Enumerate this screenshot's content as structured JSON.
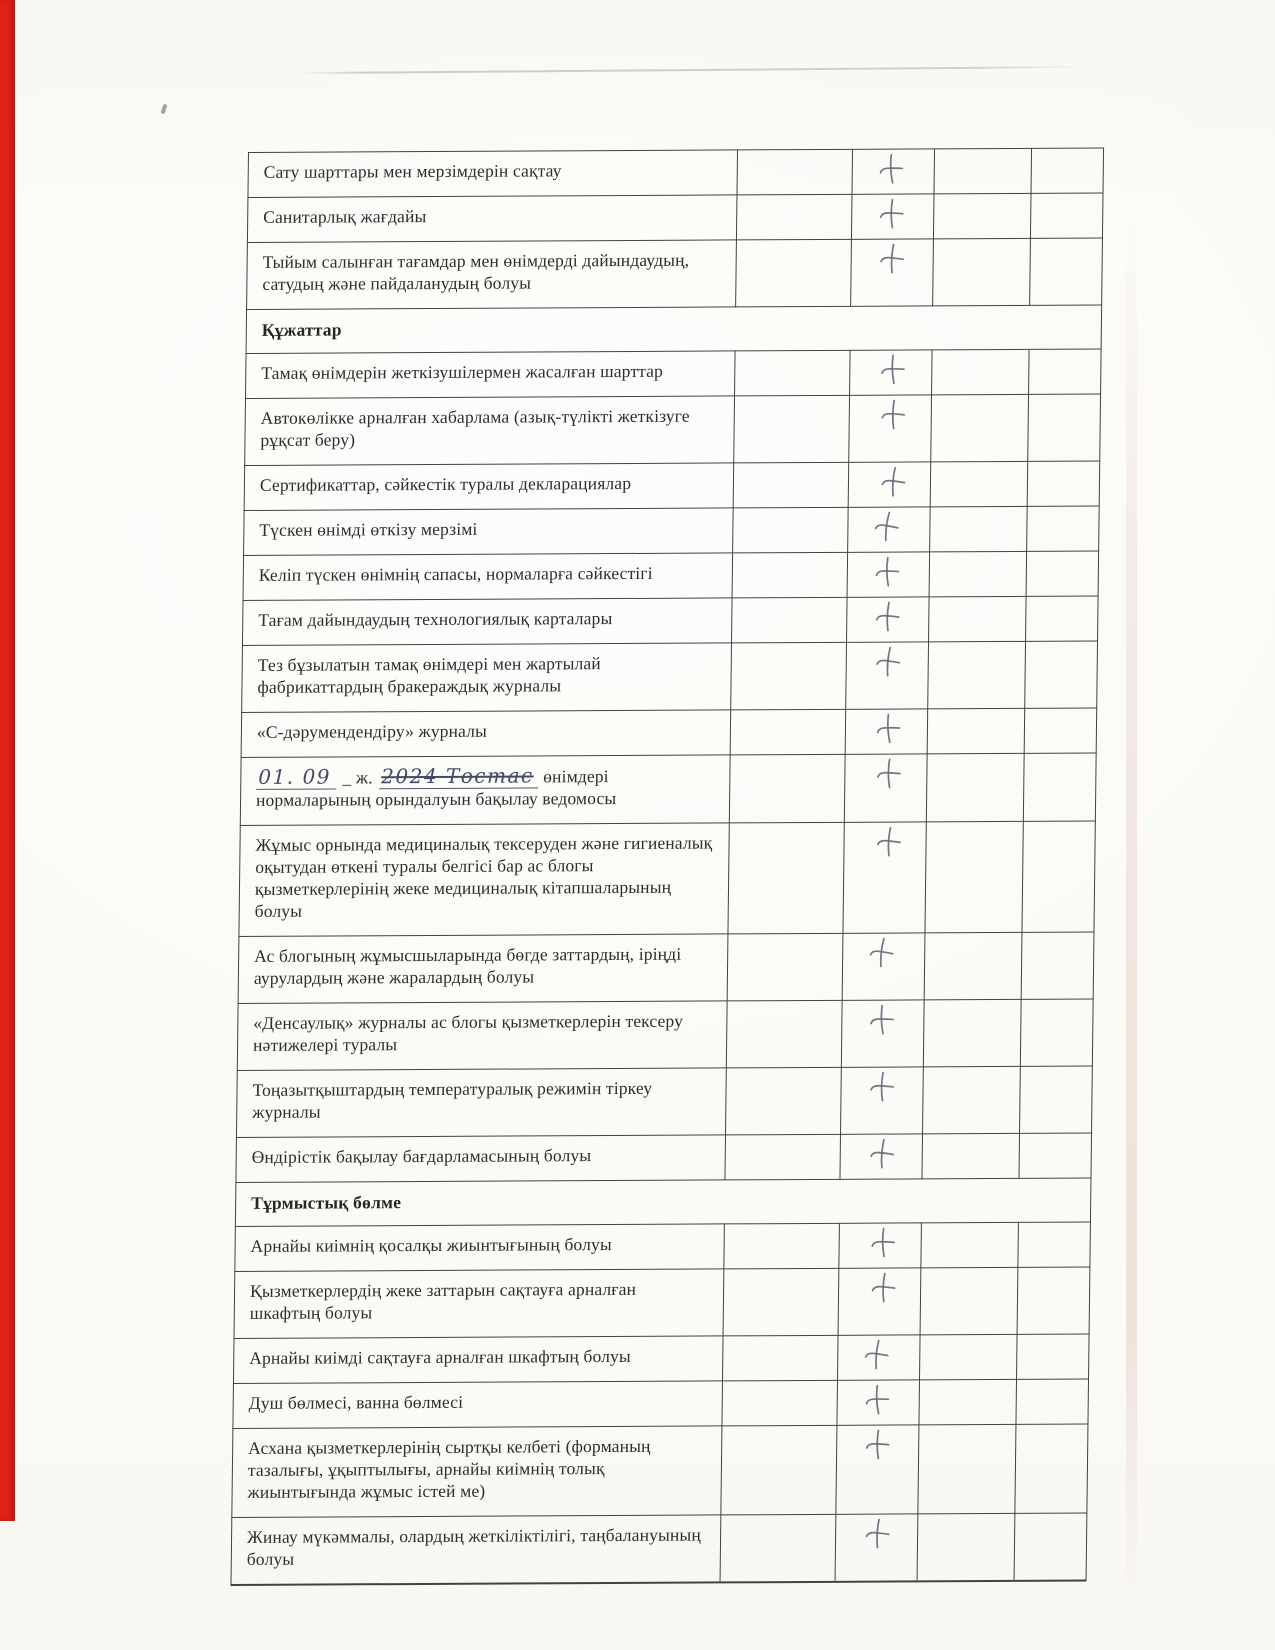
{
  "page": {
    "kind": "scanned checklist form, Kazakh language",
    "colors": {
      "paper": "#fbfaf6",
      "red_stripe": "#df2318",
      "table_border": "#43423f",
      "printed_ink": "#2e2d2b",
      "pencil_mark": "#636a79",
      "handwriting_ink": "#414b66"
    }
  },
  "table": {
    "rows": [
      {
        "kind": "item",
        "text": "Сату шарттары мен мерзімдерін сақтау",
        "mark": true
      },
      {
        "kind": "item",
        "text": "Санитарлық жағдайы",
        "mark": true
      },
      {
        "kind": "item",
        "text": "Тыйым салынған тағамдар мен өнімдерді дайындаудың, сатудың және пайдаланудың болуы",
        "mark": true
      },
      {
        "kind": "section",
        "text": "Құжаттар"
      },
      {
        "kind": "item",
        "text": "Тамақ өнімдерін жеткізушілермен жасалған шарттар",
        "mark": true
      },
      {
        "kind": "item",
        "text": "Автокөлікке арналған хабарлама (азық-түлікті жеткізуге рұқсат беру)",
        "mark": true
      },
      {
        "kind": "item",
        "text": "Сертификаттар, сәйкестік туралы декларациялар",
        "mark": true
      },
      {
        "kind": "item",
        "text": "Түскен өнімді өткізу мерзімі",
        "mark": true
      },
      {
        "kind": "item",
        "text": "Келіп түскен өнімнің сапасы, нормаларға сәйкестігі",
        "mark": true
      },
      {
        "kind": "item",
        "text": "Тағам дайындаудың технологиялық карталары",
        "mark": true
      },
      {
        "kind": "item",
        "text": "Тез бұзылатын тамақ өнімдері мен жартылай фабрикаттардың бракераждық журналы",
        "mark": true
      },
      {
        "kind": "item",
        "text": "«С-дәрумендендіру» журналы",
        "mark": true
      },
      {
        "kind": "fill",
        "handwritten_date": "01. 09",
        "printed_mid": "_ ж.",
        "handwritten_note": "2024 Тостас",
        "printed_tail": "өнімдері нормаларының орындалуын бақылау ведомосы",
        "mark": true
      },
      {
        "kind": "item",
        "text": "Жұмыс орнында медициналық тексеруден және гигиеналық оқытудан өткені туралы белгісі бар ас блогы қызметкерлерінің жеке медициналық кітапшаларының болуы",
        "mark": true
      },
      {
        "kind": "item",
        "text": "Ас блогының жұмысшыларында бөгде заттардың, іріңді аурулардың және жаралардың болуы",
        "mark": true
      },
      {
        "kind": "item",
        "text": "«Денсаулық» журналы ас блогы қызметкерлерін тексеру нәтижелері туралы",
        "mark": true
      },
      {
        "kind": "item",
        "text": "Тоңазытқыштардың температуралық режимін тіркеу журналы",
        "mark": true
      },
      {
        "kind": "item",
        "text": "Өндірістік бақылау бағдарламасының болуы",
        "mark": true
      },
      {
        "kind": "section",
        "text": "Тұрмыстық бөлме"
      },
      {
        "kind": "item",
        "text": "Арнайы киімнің қосалқы жиынтығының болуы",
        "mark": true
      },
      {
        "kind": "item",
        "text": "Қызметкерлердің жеке заттарын сақтауға арналған шкафтың болуы",
        "mark": true
      },
      {
        "kind": "item",
        "text": "Арнайы киімді сақтауға арналған шкафтың болуы",
        "mark": true
      },
      {
        "kind": "item",
        "text": "Душ бөлмесі, ванна бөлмесі",
        "mark": true
      },
      {
        "kind": "item",
        "text": "Асхана қызметкерлерінің сыртқы келбеті (форманың тазалығы, ұқыптылығы, арнайы киімнің толық жиынтығында жұмыс істей ме)",
        "mark": true
      },
      {
        "kind": "item",
        "text": "Жинау мүкәммалы, олардың жеткіліктілігі, таңбалануының болуы",
        "mark": true
      }
    ]
  }
}
